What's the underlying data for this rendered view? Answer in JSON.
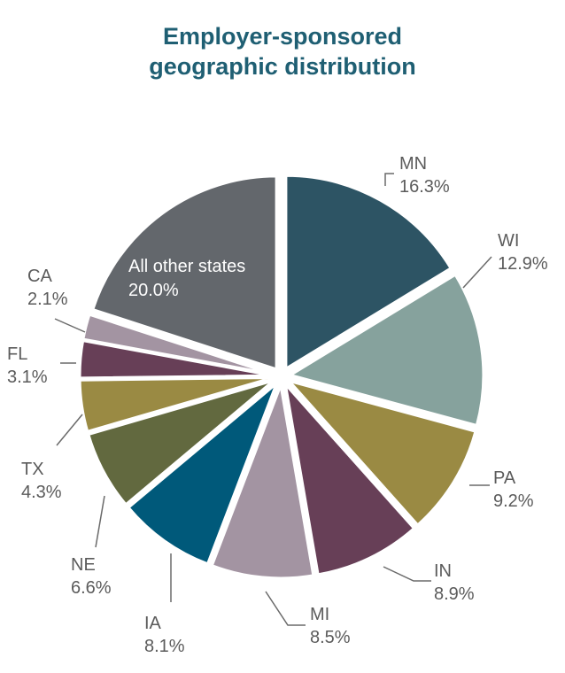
{
  "chart_data": {
    "type": "pie",
    "title": "Employer-sponsored geographic distribution",
    "title_lines": [
      "Employer-sponsored",
      "geographic distribution"
    ],
    "slices": [
      {
        "label": "MN",
        "value": 16.3,
        "value_label": "16.3%",
        "color": "#2d5464",
        "explode": 10
      },
      {
        "label": "WI",
        "value": 12.9,
        "value_label": "12.9%",
        "color": "#86a29d",
        "explode": 10
      },
      {
        "label": "PA",
        "value": 9.2,
        "value_label": "9.2%",
        "color": "#9a8a43",
        "explode": 10
      },
      {
        "label": "IN",
        "value": 8.9,
        "value_label": "8.9%",
        "color": "#673f57",
        "explode": 10
      },
      {
        "label": "MI",
        "value": 8.5,
        "value_label": "8.5%",
        "color": "#a394a2",
        "explode": 10
      },
      {
        "label": "IA",
        "value": 8.1,
        "value_label": "8.1%",
        "color": "#00597a",
        "explode": 10
      },
      {
        "label": "NE",
        "value": 6.6,
        "value_label": "6.6%",
        "color": "#62693f",
        "explode": 10
      },
      {
        "label": "TX",
        "value": 4.3,
        "value_label": "4.3%",
        "color": "#9a8a43",
        "explode": 10
      },
      {
        "label": "FL",
        "value": 3.1,
        "value_label": "3.1%",
        "color": "#673f57",
        "explode": 10
      },
      {
        "label": "CA",
        "value": 2.1,
        "value_label": "2.1%",
        "color": "#a394a2",
        "explode": 10
      },
      {
        "label": "All other states",
        "value": 20.0,
        "value_label": "20.0%",
        "color": "#63676c",
        "explode": 10,
        "label_inside": true
      }
    ],
    "start_angle_deg": 0,
    "direction": "clockwise",
    "legend": "none"
  }
}
